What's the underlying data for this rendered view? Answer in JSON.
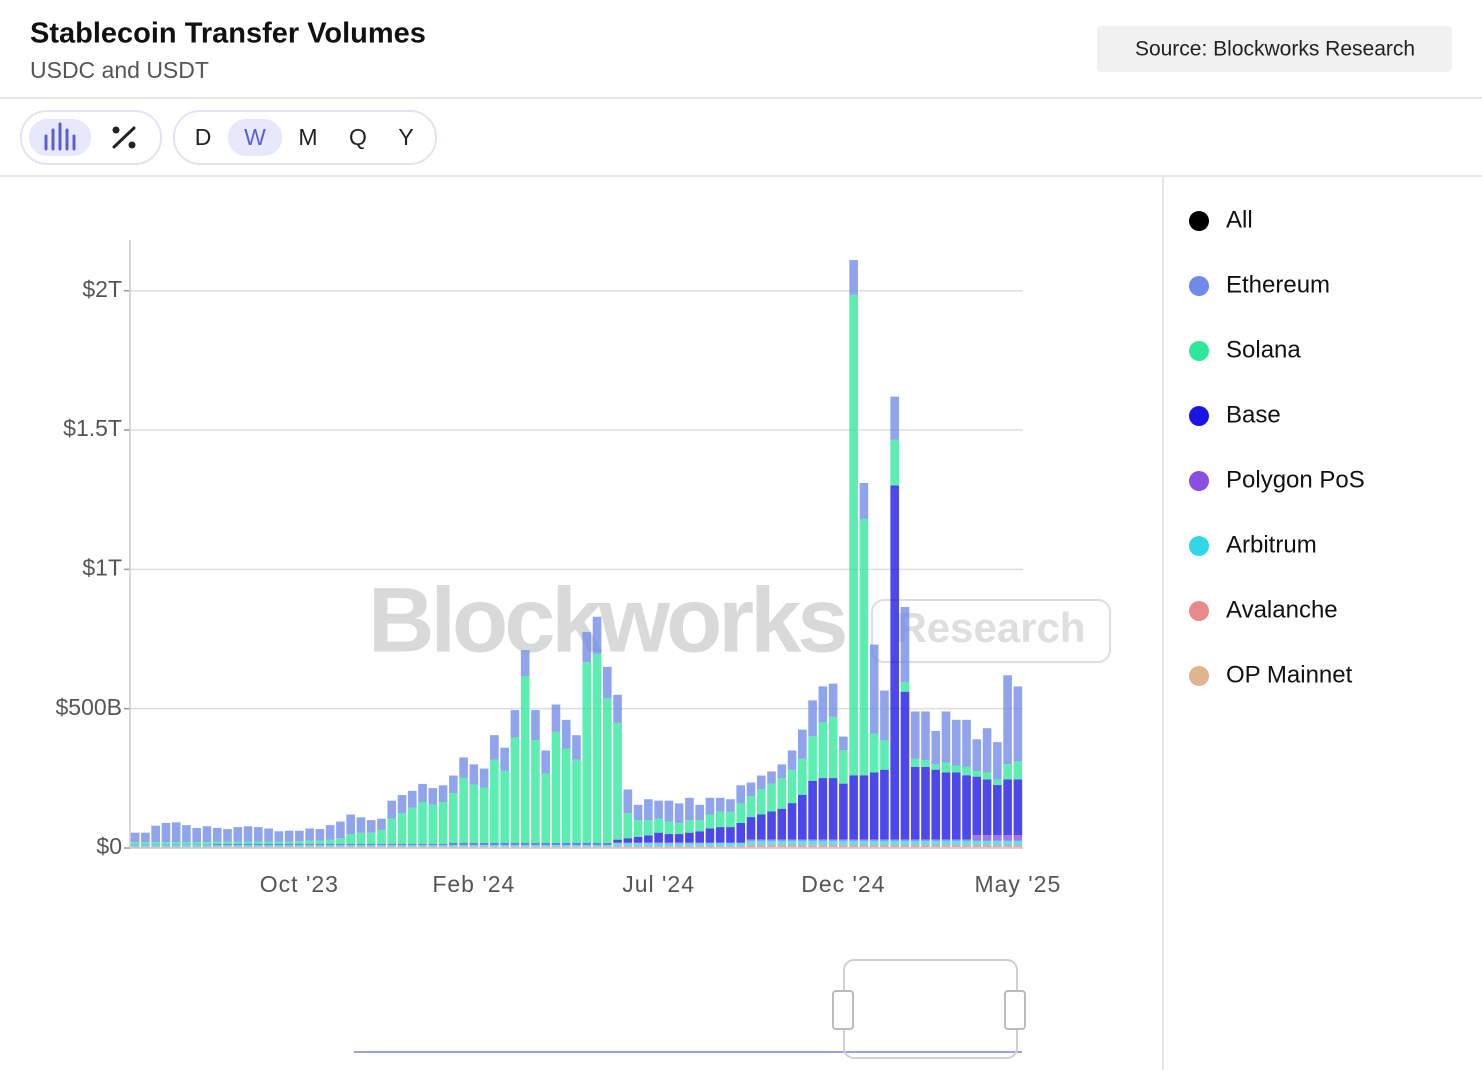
{
  "header": {
    "title": "Stablecoin Transfer Volumes",
    "subtitle": "USDC and USDT",
    "source": "Source: Blockworks Research"
  },
  "toolbar": {
    "periods": [
      "D",
      "W",
      "M",
      "Q",
      "Y"
    ],
    "active_period": "W"
  },
  "chart_data": {
    "type": "bar",
    "stacked": true,
    "watermark": [
      "Blockworks",
      "Research"
    ],
    "grid": true,
    "ylim": [
      0,
      2200
    ],
    "yticks": [
      {
        "value": 0,
        "label": "$0"
      },
      {
        "value": 500,
        "label": "$500B"
      },
      {
        "value": 1000,
        "label": "$1T"
      },
      {
        "value": 1500,
        "label": "$1.5T"
      },
      {
        "value": 2000,
        "label": "$2T"
      }
    ],
    "legend_toggle": {
      "name": "All",
      "color": "#000000"
    },
    "categories": [
      null,
      null,
      null,
      null,
      null,
      null,
      null,
      null,
      null,
      null,
      null,
      null,
      null,
      null,
      null,
      null,
      "Oct '23",
      null,
      null,
      null,
      null,
      null,
      null,
      null,
      null,
      null,
      null,
      null,
      null,
      null,
      null,
      null,
      null,
      "Feb '24",
      null,
      null,
      null,
      null,
      null,
      null,
      null,
      null,
      null,
      null,
      null,
      null,
      null,
      null,
      null,
      null,
      null,
      "Jul '24",
      null,
      null,
      null,
      null,
      null,
      null,
      null,
      null,
      null,
      null,
      null,
      null,
      null,
      null,
      null,
      null,
      null,
      "Dec '24",
      null,
      null,
      null,
      null,
      null,
      null,
      null,
      null,
      null,
      null,
      null,
      null,
      null,
      null,
      null,
      null,
      "May '25"
    ],
    "series": [
      {
        "name": "Ethereum",
        "color": "#6f8ae8",
        "values": [
          34,
          34,
          59,
          69,
          71,
          61,
          51,
          57,
          49,
          45,
          52,
          55,
          52,
          47,
          37,
          39,
          37,
          43,
          41,
          52,
          60,
          70,
          55,
          45,
          40,
          65,
          65,
          60,
          65,
          60,
          60,
          63,
          73,
          73,
          68,
          88,
          83,
          98,
          93,
          108,
          83,
          98,
          103,
          88,
          108,
          133,
          113,
          100,
          85,
          55,
          75,
          65,
          75,
          70,
          80,
          55,
          60,
          50,
          45,
          65,
          49,
          49,
          44,
          49,
          69,
          104,
          129,
          129,
          119,
          49,
          124,
          129,
          319,
          179,
          154,
          269,
          169,
          174,
          119,
          184,
          164,
          169,
          114,
          159,
          134,
          319,
          269
        ]
      },
      {
        "name": "Solana",
        "color": "#2ee89a",
        "values": [
          8,
          8,
          8,
          8,
          8,
          8,
          8,
          8,
          8,
          8,
          8,
          8,
          8,
          8,
          8,
          8,
          10,
          12,
          12,
          15,
          20,
          35,
          40,
          40,
          50,
          90,
          110,
          130,
          150,
          140,
          150,
          180,
          235,
          210,
          200,
          300,
          260,
          380,
          600,
          370,
          250,
          400,
          340,
          300,
          650,
          680,
          520,
          420,
          90,
          60,
          55,
          50,
          45,
          40,
          45,
          40,
          50,
          55,
          55,
          70,
          75,
          90,
          100,
          110,
          120,
          130,
          160,
          200,
          220,
          120,
          1725,
          920,
          140,
          105,
          165,
          35,
          30,
          25,
          20,
          35,
          25,
          30,
          20,
          25,
          20,
          55,
          65
        ]
      },
      {
        "name": "Base",
        "color": "#1a14e6",
        "values": [
          0,
          0,
          0,
          0,
          0,
          0,
          0,
          0,
          2,
          2,
          2,
          2,
          2,
          2,
          2,
          2,
          2,
          2,
          2,
          2,
          2,
          2,
          2,
          2,
          2,
          2,
          2,
          2,
          2,
          2,
          2,
          4,
          4,
          4,
          4,
          4,
          4,
          4,
          4,
          4,
          4,
          4,
          4,
          4,
          4,
          4,
          4,
          10,
          15,
          20,
          25,
          35,
          30,
          30,
          35,
          40,
          50,
          55,
          55,
          70,
          80,
          90,
          100,
          110,
          130,
          160,
          210,
          220,
          220,
          200,
          230,
          230,
          240,
          250,
          1270,
          530,
          260,
          260,
          250,
          240,
          240,
          230,
          210,
          200,
          180,
          200,
          200
        ]
      },
      {
        "name": "Polygon PoS",
        "color": "#8a4ee0",
        "values": [
          2,
          2,
          2,
          2,
          2,
          2,
          2,
          2,
          2,
          2,
          2,
          2,
          2,
          2,
          2,
          2,
          2,
          2,
          2,
          2,
          2,
          2,
          2,
          2,
          2,
          2,
          2,
          2,
          2,
          2,
          2,
          2,
          2,
          2,
          2,
          2,
          2,
          2,
          2,
          2,
          2,
          2,
          2,
          2,
          2,
          2,
          2,
          3,
          3,
          3,
          3,
          3,
          3,
          3,
          3,
          3,
          3,
          3,
          3,
          3,
          5,
          5,
          5,
          5,
          5,
          5,
          5,
          5,
          5,
          5,
          5,
          5,
          5,
          5,
          5,
          5,
          5,
          5,
          5,
          5,
          5,
          5,
          20,
          20,
          20,
          20,
          20
        ]
      },
      {
        "name": "Arbitrum",
        "color": "#2ed8e6",
        "values": [
          6,
          6,
          6,
          6,
          6,
          6,
          6,
          6,
          6,
          6,
          6,
          6,
          6,
          6,
          6,
          6,
          6,
          6,
          6,
          6,
          6,
          6,
          6,
          6,
          6,
          6,
          6,
          6,
          6,
          6,
          6,
          6,
          6,
          6,
          6,
          6,
          6,
          6,
          6,
          6,
          6,
          6,
          6,
          6,
          6,
          6,
          6,
          10,
          10,
          10,
          10,
          10,
          10,
          10,
          10,
          10,
          10,
          10,
          10,
          10,
          15,
          15,
          15,
          15,
          15,
          15,
          15,
          15,
          15,
          15,
          15,
          15,
          15,
          15,
          15,
          15,
          15,
          15,
          15,
          15,
          15,
          15,
          15,
          15,
          15,
          15,
          15
        ]
      },
      {
        "name": "Avalanche",
        "color": "#e88a8a",
        "values": [
          3,
          3,
          3,
          3,
          3,
          3,
          3,
          3,
          3,
          3,
          3,
          3,
          3,
          3,
          3,
          3,
          3,
          3,
          3,
          3,
          3,
          3,
          3,
          3,
          3,
          3,
          3,
          3,
          3,
          3,
          3,
          3,
          3,
          3,
          3,
          3,
          3,
          3,
          3,
          3,
          3,
          3,
          3,
          3,
          3,
          3,
          3,
          5,
          5,
          5,
          5,
          5,
          5,
          5,
          5,
          5,
          5,
          5,
          5,
          5,
          8,
          8,
          8,
          8,
          8,
          8,
          8,
          8,
          8,
          8,
          8,
          8,
          8,
          8,
          8,
          8,
          8,
          8,
          8,
          8,
          8,
          8,
          8,
          8,
          8,
          8,
          8
        ]
      },
      {
        "name": "OP Mainnet",
        "color": "#e0b48e",
        "values": [
          2,
          2,
          2,
          2,
          2,
          2,
          2,
          2,
          2,
          2,
          2,
          2,
          2,
          2,
          2,
          2,
          2,
          2,
          2,
          2,
          2,
          2,
          2,
          2,
          2,
          2,
          2,
          2,
          2,
          2,
          2,
          2,
          2,
          2,
          2,
          2,
          2,
          2,
          2,
          2,
          2,
          2,
          2,
          2,
          2,
          2,
          2,
          2,
          2,
          2,
          2,
          2,
          2,
          2,
          2,
          2,
          2,
          2,
          2,
          2,
          3,
          3,
          3,
          3,
          3,
          3,
          3,
          3,
          3,
          3,
          3,
          3,
          3,
          3,
          3,
          3,
          3,
          3,
          3,
          3,
          3,
          3,
          3,
          3,
          3,
          3,
          3
        ]
      }
    ]
  }
}
